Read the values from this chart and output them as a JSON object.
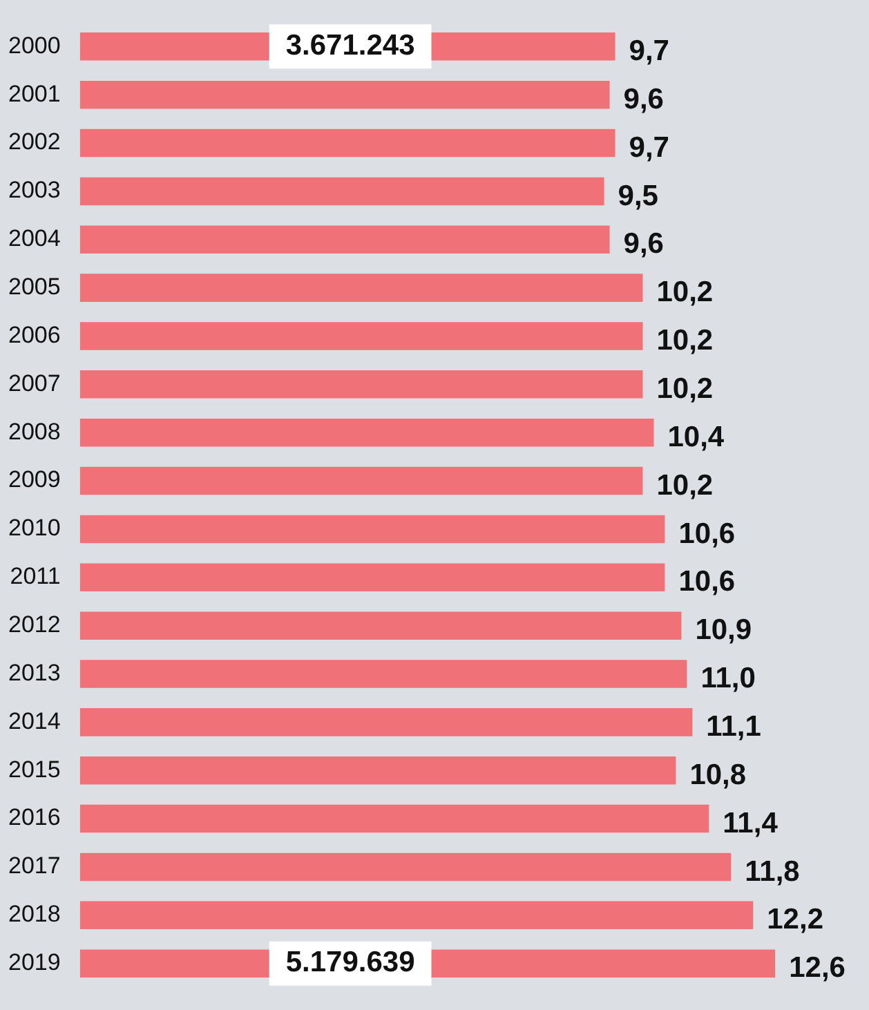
{
  "chart_data": {
    "type": "bar",
    "orientation": "horizontal",
    "tick_labels": "y",
    "categories": [
      "2000",
      "2001",
      "2002",
      "2003",
      "2004",
      "2005",
      "2006",
      "2007",
      "2008",
      "2009",
      "2010",
      "2011",
      "2012",
      "2013",
      "2014",
      "2015",
      "2016",
      "2017",
      "2018",
      "2019"
    ],
    "values": [
      9.7,
      9.6,
      9.7,
      9.5,
      9.6,
      10.2,
      10.2,
      10.2,
      10.4,
      10.2,
      10.6,
      10.6,
      10.9,
      11.0,
      11.1,
      10.8,
      11.4,
      11.8,
      12.2,
      12.6
    ],
    "value_labels": [
      "9,7",
      "9,6",
      "9,7",
      "9,5",
      "9,6",
      "10,2",
      "10,2",
      "10,2",
      "10,4",
      "10,2",
      "10,6",
      "10,6",
      "10,9",
      "11,0",
      "11,1",
      "10,8",
      "11,4",
      "11,8",
      "12,2",
      "12,6"
    ],
    "color": "#f07178",
    "xlim": [
      0,
      14.3
    ],
    "annotations": [
      {
        "text": "3.671.243",
        "x": 4.9,
        "y": "2000"
      },
      {
        "text": "5.179.639",
        "x": 4.9,
        "y": "2019"
      }
    ]
  }
}
